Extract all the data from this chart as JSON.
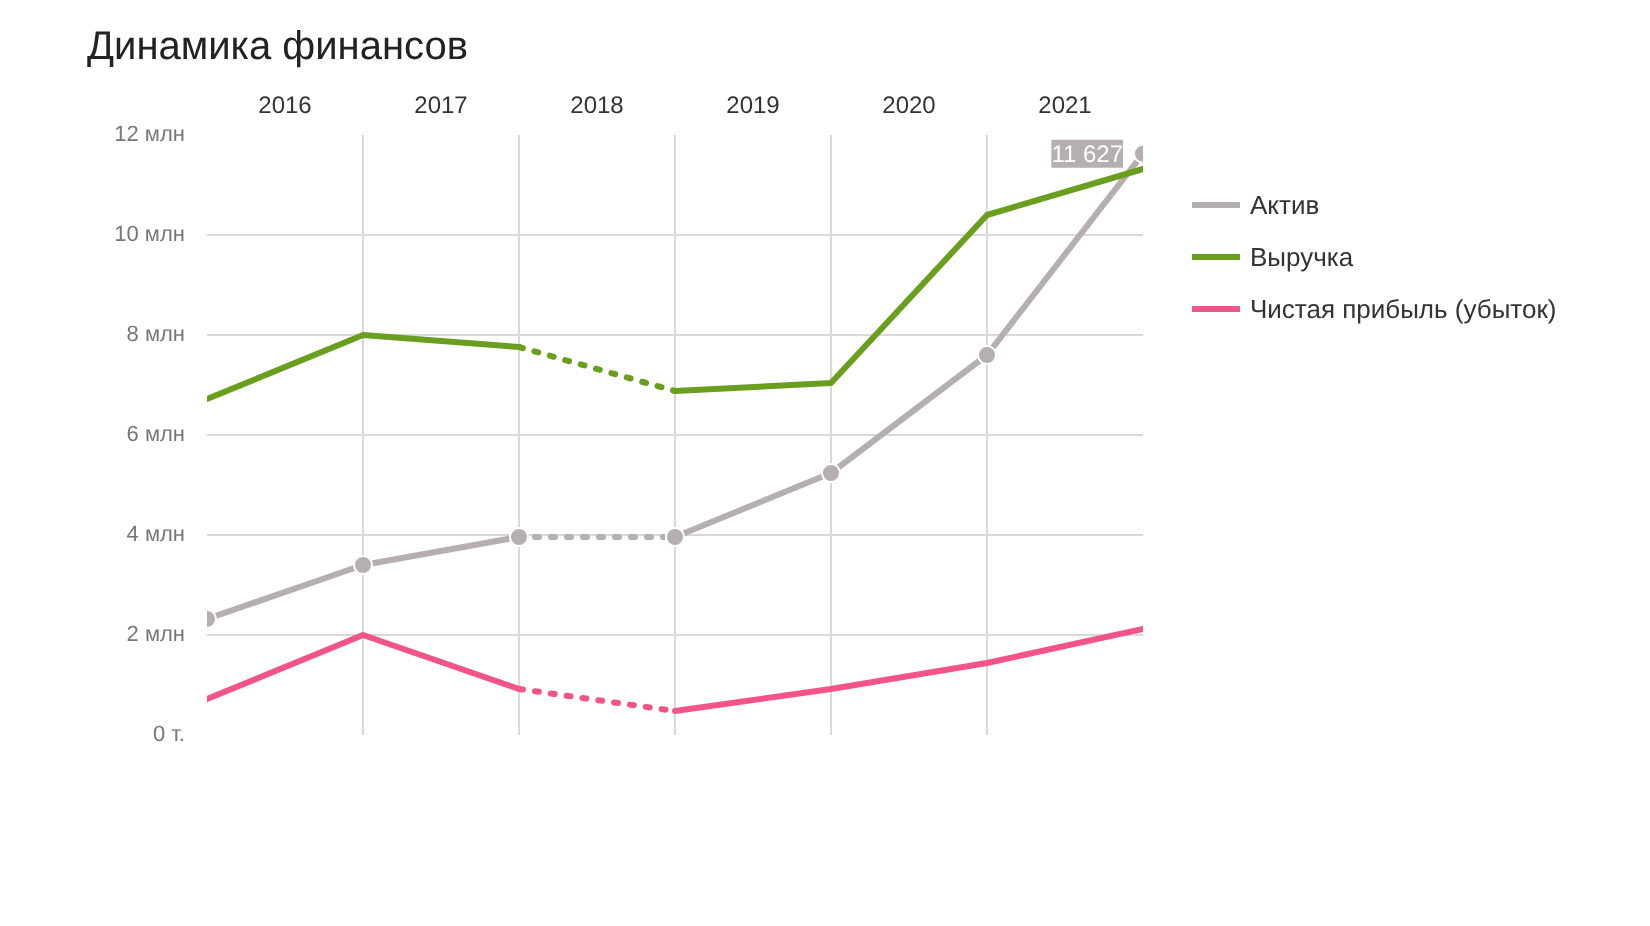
{
  "chart_data": {
    "type": "line",
    "title": "Динамика финансов",
    "xlim": [
      2015,
      2021
    ],
    "xticks": [
      {
        "value": 2015.5,
        "label": "2016"
      },
      {
        "value": 2016,
        "label": null
      },
      {
        "value": 2016.5,
        "label": "2017"
      },
      {
        "value": 2017,
        "label": null
      },
      {
        "value": 2017.5,
        "label": "2018"
      },
      {
        "value": 2018,
        "label": null
      },
      {
        "value": 2018.5,
        "label": "2019"
      },
      {
        "value": 2019,
        "label": null
      },
      {
        "value": 2019.5,
        "label": "2020"
      },
      {
        "value": 2020,
        "label": null
      },
      {
        "value": 2020.5,
        "label": "2021"
      }
    ],
    "ylim": [
      0,
      12
    ],
    "yticks": [
      {
        "value": 0,
        "label": "0 т."
      },
      {
        "value": 2,
        "label": "2 млн"
      },
      {
        "value": 4,
        "label": "4 млн"
      },
      {
        "value": 6,
        "label": "6 млн"
      },
      {
        "value": 8,
        "label": "8 млн"
      },
      {
        "value": 10,
        "label": "10 млн"
      },
      {
        "value": 12,
        "label": "12 млн"
      }
    ],
    "grid": true,
    "legend": "right",
    "series": [
      {
        "name": "Актив",
        "color": "#b5afb0",
        "marker": "circle",
        "line_style": "solid",
        "x": [
          2015,
          2016,
          2017
        ],
        "values": [
          2.32,
          3.4,
          3.96
        ]
      },
      {
        "color": "#b5afb0",
        "marker": "circle",
        "line_style": "dotted",
        "x": [
          2017,
          2018
        ],
        "values": [
          3.96,
          3.96
        ]
      },
      {
        "color": "#b5afb0",
        "marker": "circle",
        "line_style": "solid",
        "x": [
          2018,
          2019,
          2020,
          2021
        ],
        "values": [
          3.96,
          5.24,
          7.6,
          11.627
        ]
      },
      {
        "name": "Выручка",
        "color": "#6a9e1f",
        "marker": "none",
        "line_style": "solid",
        "x": [
          2015,
          2016,
          2017
        ],
        "values": [
          6.72,
          8.0,
          7.76
        ]
      },
      {
        "color": "#6a9e1f",
        "marker": "none",
        "line_style": "dotted",
        "x": [
          2017,
          2018
        ],
        "values": [
          7.76,
          6.88
        ]
      },
      {
        "color": "#6a9e1f",
        "marker": "none",
        "line_style": "solid",
        "x": [
          2018,
          2019,
          2020,
          2021
        ],
        "values": [
          6.88,
          7.04,
          10.4,
          11.32
        ]
      },
      {
        "name": "Чистая прибыль (убыток)",
        "color": "#f2548a",
        "marker": "none",
        "line_style": "solid",
        "x": [
          2015,
          2016,
          2017
        ],
        "values": [
          0.72,
          2.0,
          0.92
        ]
      },
      {
        "color": "#f2548a",
        "marker": "none",
        "line_style": "dotted",
        "x": [
          2017,
          2018
        ],
        "values": [
          0.92,
          0.48
        ]
      },
      {
        "color": "#f2548a",
        "marker": "none",
        "line_style": "solid",
        "x": [
          2018,
          2019,
          2020,
          2021
        ],
        "values": [
          0.48,
          0.92,
          1.44,
          2.12
        ]
      }
    ],
    "annotations": [
      {
        "text": "11 627",
        "x": 2021,
        "y": 11.627
      }
    ]
  }
}
